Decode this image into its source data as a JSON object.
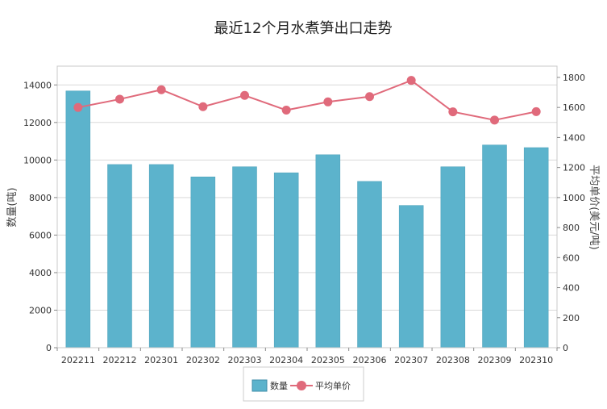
{
  "chart_data": {
    "type": "bar",
    "title": "最近12个月水煮笋出口走势",
    "categories": [
      "202211",
      "202212",
      "202301",
      "202302",
      "202303",
      "202304",
      "202305",
      "202306",
      "202307",
      "202308",
      "202309",
      "202310"
    ],
    "series": [
      {
        "name": "数量",
        "type": "bar",
        "axis": "left",
        "color": "#5cb3cc",
        "values": [
          13680,
          9760,
          9760,
          9100,
          9640,
          9320,
          10280,
          8860,
          7580,
          9640,
          10800,
          10660
        ]
      },
      {
        "name": "平均单价",
        "type": "line",
        "axis": "right",
        "color": "#e06a7b",
        "values": [
          1600,
          1655,
          1718,
          1605,
          1680,
          1582,
          1637,
          1672,
          1780,
          1571,
          1516,
          1572
        ]
      }
    ],
    "ylabel": "数量(吨)",
    "y2label": "平均单价(美元/吨)",
    "ylim": [
      0,
      15000
    ],
    "y2lim": [
      0,
      1875
    ],
    "yticks": [
      "0",
      "2000",
      "4000",
      "6000",
      "8000",
      "10000",
      "12000",
      "14000"
    ],
    "y2ticks": [
      "0",
      "200",
      "400",
      "600",
      "800",
      "1000",
      "1200",
      "1400",
      "1600",
      "1800"
    ],
    "grid": true,
    "legend_position": "bottom"
  }
}
